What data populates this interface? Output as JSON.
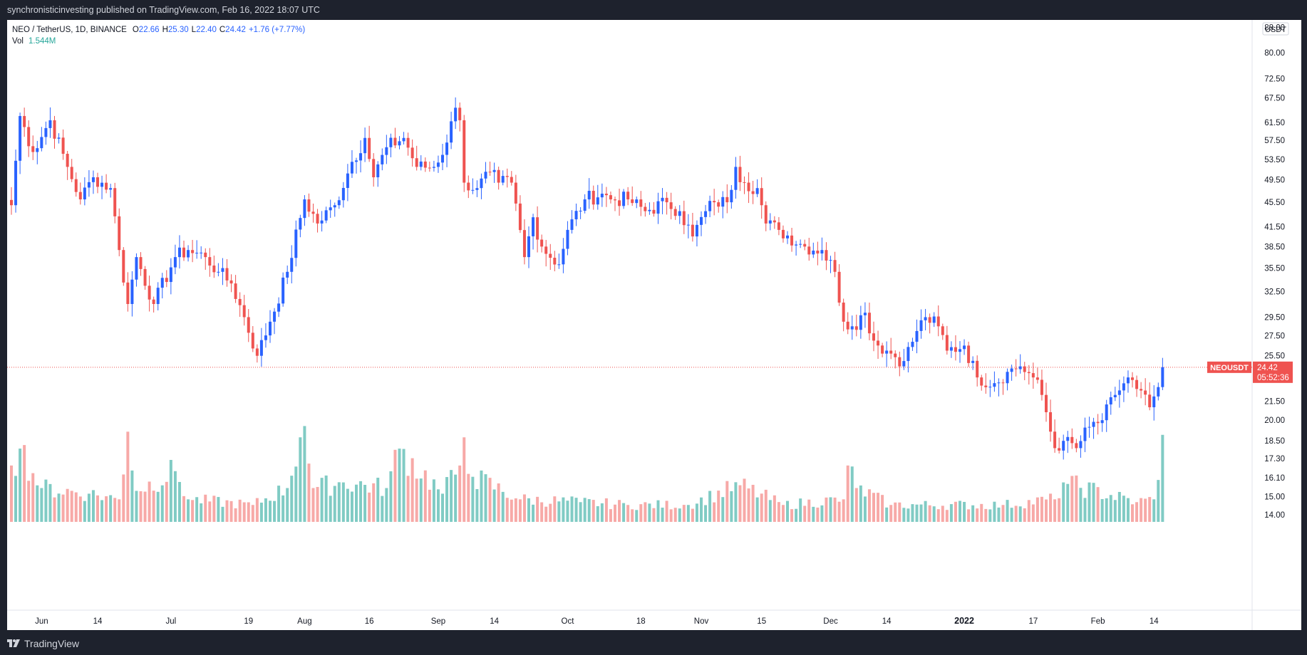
{
  "publisher_line": "synchronisticinvesting published on TradingView.com, Feb 16, 2022 18:07 UTC",
  "footer_brand": "TradingView",
  "legend": {
    "symbol": "NEO / TetherUS, 1D, BINANCE",
    "open_label": "O",
    "open": "22.66",
    "high_label": "H",
    "high": "25.30",
    "low_label": "L",
    "low": "22.40",
    "close_label": "C",
    "close": "24.42",
    "change": "+1.76 (+7.77%)",
    "vol_label": "Vol",
    "vol": "1.544M"
  },
  "price_axis": {
    "unit": "USDT",
    "ticks": [
      "88.00",
      "80.00",
      "72.50",
      "67.50",
      "61.50",
      "57.50",
      "53.50",
      "49.50",
      "45.50",
      "41.50",
      "38.50",
      "35.50",
      "32.50",
      "29.50",
      "27.50",
      "25.50",
      "21.50",
      "20.00",
      "18.50",
      "17.30",
      "16.10",
      "15.00",
      "14.00"
    ]
  },
  "last_price": {
    "symbol": "NEOUSDT",
    "price": "24.42",
    "countdown": "05:52:36"
  },
  "time_axis": {
    "labels": [
      "Jun",
      "14",
      "Jul",
      "19",
      "Aug",
      "16",
      "Sep",
      "14",
      "Oct",
      "18",
      "Nov",
      "15",
      "Dec",
      "14",
      "2022",
      "17",
      "Feb",
      "14"
    ],
    "bold": [
      "2022"
    ]
  },
  "colors": {
    "up": "#2962ff",
    "down": "#ef5350",
    "vol_up": "#80cbc4",
    "vol_down": "#f7a9a7",
    "last_line": "#ef5350",
    "text": "#131722",
    "legend_values": "#2962ff",
    "vol_value": "#26a69a"
  },
  "chart_data": {
    "type": "candlestick",
    "scale": "log",
    "interval": "1D",
    "ylim": [
      14.0,
      88.0
    ],
    "anchors": [
      [
        "2021-05-25",
        45
      ],
      [
        "2021-05-27",
        63
      ],
      [
        "2021-05-30",
        55
      ],
      [
        "2021-06-03",
        62
      ],
      [
        "2021-06-07",
        52
      ],
      [
        "2021-06-10",
        46
      ],
      [
        "2021-06-13",
        50
      ],
      [
        "2021-06-17",
        48
      ],
      [
        "2021-06-19",
        38
      ],
      [
        "2021-06-21",
        31
      ],
      [
        "2021-06-23",
        37
      ],
      [
        "2021-06-27",
        31
      ],
      [
        "2021-07-02",
        37
      ],
      [
        "2021-07-05",
        38
      ],
      [
        "2021-07-09",
        37
      ],
      [
        "2021-07-12",
        35
      ],
      [
        "2021-07-15",
        33.5
      ],
      [
        "2021-07-18",
        29.5
      ],
      [
        "2021-07-21",
        25.5
      ],
      [
        "2021-07-24",
        29
      ],
      [
        "2021-07-28",
        35
      ],
      [
        "2021-08-01",
        46
      ],
      [
        "2021-08-04",
        42
      ],
      [
        "2021-08-08",
        45
      ],
      [
        "2021-08-12",
        53
      ],
      [
        "2021-08-15",
        58
      ],
      [
        "2021-08-17",
        50
      ],
      [
        "2021-08-20",
        56
      ],
      [
        "2021-08-24",
        58
      ],
      [
        "2021-08-27",
        52
      ],
      [
        "2021-08-31",
        52
      ],
      [
        "2021-09-03",
        57
      ],
      [
        "2021-09-05",
        65
      ],
      [
        "2021-09-06",
        62
      ],
      [
        "2021-09-07",
        49
      ],
      [
        "2021-09-10",
        48
      ],
      [
        "2021-09-13",
        51
      ],
      [
        "2021-09-15",
        49
      ],
      [
        "2021-09-18",
        49
      ],
      [
        "2021-09-21",
        37
      ],
      [
        "2021-09-23",
        43
      ],
      [
        "2021-09-25",
        38.5
      ],
      [
        "2021-09-29",
        36
      ],
      [
        "2021-10-01",
        41
      ],
      [
        "2021-10-05",
        46
      ],
      [
        "2021-10-09",
        47
      ],
      [
        "2021-10-11",
        46
      ],
      [
        "2021-10-15",
        46
      ],
      [
        "2021-10-19",
        44
      ],
      [
        "2021-10-24",
        45.5
      ],
      [
        "2021-10-27",
        44
      ],
      [
        "2021-10-30",
        40
      ],
      [
        "2021-11-02",
        44
      ],
      [
        "2021-11-04",
        45.5
      ],
      [
        "2021-11-07",
        45.5
      ],
      [
        "2021-11-09",
        52
      ],
      [
        "2021-11-11",
        49
      ],
      [
        "2021-11-14",
        48
      ],
      [
        "2021-11-16",
        42
      ],
      [
        "2021-11-19",
        41
      ],
      [
        "2021-11-25",
        38.5
      ],
      [
        "2021-11-29",
        38
      ],
      [
        "2021-12-02",
        35
      ],
      [
        "2021-12-04",
        29
      ],
      [
        "2021-12-06",
        28.5
      ],
      [
        "2021-12-09",
        30
      ],
      [
        "2021-12-11",
        27
      ],
      [
        "2021-12-14",
        26
      ],
      [
        "2021-12-18",
        25
      ],
      [
        "2021-12-21",
        28
      ],
      [
        "2021-12-23",
        29.5
      ],
      [
        "2021-12-26",
        28.5
      ],
      [
        "2021-12-28",
        26
      ],
      [
        "2022-01-01",
        26.5
      ],
      [
        "2022-01-04",
        23.5
      ],
      [
        "2022-01-08",
        23
      ],
      [
        "2022-01-11",
        24
      ],
      [
        "2022-01-14",
        24.5
      ],
      [
        "2022-01-17",
        23.5
      ],
      [
        "2022-01-19",
        22
      ],
      [
        "2022-01-22",
        18
      ],
      [
        "2022-01-24",
        18.5
      ],
      [
        "2022-01-27",
        18
      ],
      [
        "2022-01-30",
        19.5
      ],
      [
        "2022-02-02",
        20
      ],
      [
        "2022-02-05",
        22
      ],
      [
        "2022-02-08",
        23.5
      ],
      [
        "2022-02-10",
        22.5
      ],
      [
        "2022-02-13",
        21
      ],
      [
        "2022-02-15",
        22.66
      ],
      [
        "2022-02-16",
        24.42
      ]
    ],
    "volume_ylim": [
      0,
      2.4
    ],
    "volume_anchors": [
      [
        "2021-05-25",
        1.0
      ],
      [
        "2021-05-27",
        1.3
      ],
      [
        "2021-06-01",
        0.6
      ],
      [
        "2021-06-12",
        0.5
      ],
      [
        "2021-06-19",
        0.4
      ],
      [
        "2021-06-21",
        1.6
      ],
      [
        "2021-06-23",
        0.55
      ],
      [
        "2021-07-02",
        0.9
      ],
      [
        "2021-07-05",
        0.4
      ],
      [
        "2021-07-20",
        0.3
      ],
      [
        "2021-07-28",
        0.6
      ],
      [
        "2021-07-31",
        1.5
      ],
      [
        "2021-08-01",
        1.7
      ],
      [
        "2021-08-03",
        0.6
      ],
      [
        "2021-08-10",
        0.7
      ],
      [
        "2021-08-20",
        0.6
      ],
      [
        "2021-08-23",
        1.3
      ],
      [
        "2021-09-02",
        0.5
      ],
      [
        "2021-09-06",
        1.0
      ],
      [
        "2021-09-07",
        1.5
      ],
      [
        "2021-09-09",
        0.8
      ],
      [
        "2021-09-20",
        0.4
      ],
      [
        "2021-10-04",
        0.35
      ],
      [
        "2021-10-15",
        0.3
      ],
      [
        "2021-10-29",
        0.3
      ],
      [
        "2021-11-10",
        0.65
      ],
      [
        "2021-11-20",
        0.3
      ],
      [
        "2021-12-04",
        0.4
      ],
      [
        "2021-12-05",
        1.0
      ],
      [
        "2021-12-07",
        0.6
      ],
      [
        "2021-12-15",
        0.3
      ],
      [
        "2022-01-10",
        0.3
      ],
      [
        "2022-01-22",
        0.4
      ],
      [
        "2022-01-24",
        0.7
      ],
      [
        "2022-02-10",
        0.35
      ],
      [
        "2022-02-14",
        0.4
      ],
      [
        "2022-02-16",
        1.544
      ]
    ]
  }
}
